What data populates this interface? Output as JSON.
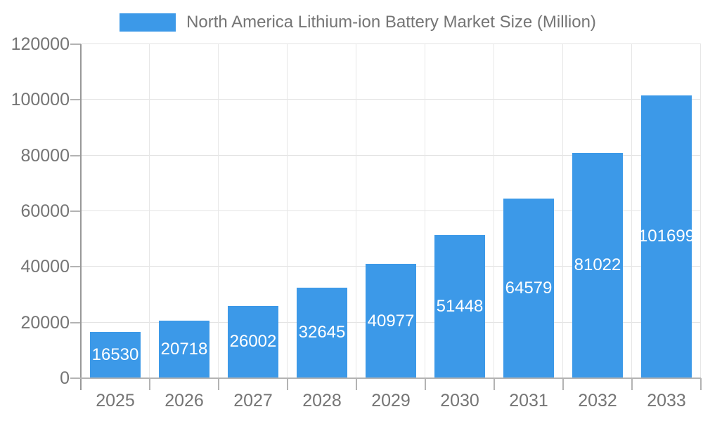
{
  "legend": {
    "label": "North America Lithium-ion Battery Market Size (Million)"
  },
  "chart_data": {
    "type": "bar",
    "title": "North America Lithium-ion Battery Market Size (Million)",
    "categories": [
      "2025",
      "2026",
      "2027",
      "2028",
      "2029",
      "2030",
      "2031",
      "2032",
      "2033"
    ],
    "values": [
      16530,
      20718,
      26002,
      32645,
      40977,
      51448,
      64579,
      81022,
      101699
    ],
    "xlabel": "",
    "ylabel": "",
    "ylim": [
      0,
      120000
    ],
    "yticks": [
      0,
      20000,
      40000,
      60000,
      80000,
      100000,
      120000
    ],
    "grid": true,
    "legend_position": "top",
    "value_labels": "inside-center",
    "bar_color": "#3c99e8",
    "value_label_color": "#ffffff",
    "axis_text_color": "#757575"
  }
}
